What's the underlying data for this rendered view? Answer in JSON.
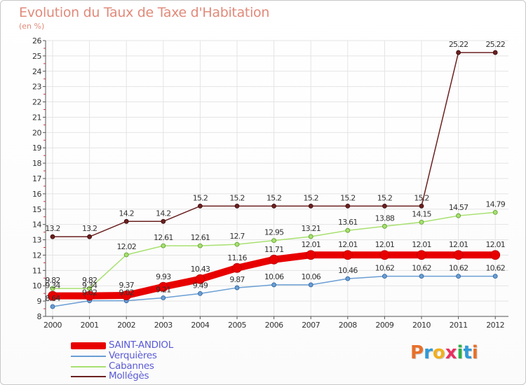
{
  "title": "Evolution du Taux de Taxe d'Habitation",
  "subtitle": "(en %)",
  "logo_text": "Proxiti",
  "colors": {
    "saint_andiol": "#e80000",
    "verquieres": "#6a9ed4",
    "cabannes": "#a8e070",
    "molleges": "#6b2020",
    "axis": "#555555",
    "grid": "#e4e4e4",
    "tick": "#dd3333",
    "legend_text": "#5a5ad6"
  },
  "chart_data": {
    "type": "line",
    "title": "Evolution du Taux de Taxe d'Habitation",
    "subtitle": "(en %)",
    "x": [
      "2000",
      "2001",
      "2002",
      "2003",
      "2004",
      "2005",
      "2006",
      "2007",
      "2008",
      "2009",
      "2010",
      "2011",
      "2012"
    ],
    "ylim": [
      8,
      26
    ],
    "yticks": [
      8,
      9,
      10,
      11,
      12,
      13,
      14,
      15,
      16,
      17,
      18,
      19,
      20,
      21,
      22,
      23,
      24,
      25,
      26
    ],
    "grid": true,
    "legend_position": "bottom-left",
    "series": [
      {
        "name": "SAINT-ANDIOL",
        "values": [
          9.34,
          9.34,
          9.37,
          9.93,
          10.43,
          11.16,
          11.71,
          12.01,
          12.01,
          12.01,
          12.01,
          12.01,
          12.01
        ],
        "labels": [
          "9.34",
          "9.34",
          "9.37",
          "9.93",
          "10.43",
          "11.16",
          "11.71",
          "12.01",
          "12.01",
          "12.01",
          "12.01",
          "12.01",
          "12.01"
        ]
      },
      {
        "name": "Verquières",
        "values": [
          8.64,
          9.02,
          9.02,
          9.21,
          9.49,
          9.87,
          10.06,
          10.06,
          10.46,
          10.62,
          10.62,
          10.62,
          10.62
        ],
        "labels": [
          "8.64",
          "9.02",
          "9.02",
          "9.21",
          "9.49",
          "9.87",
          "10.06",
          "10.06",
          "10.46",
          "10.62",
          "10.62",
          "10.62",
          "10.62"
        ]
      },
      {
        "name": "Cabannes",
        "values": [
          9.82,
          9.82,
          12.02,
          12.61,
          12.61,
          12.7,
          12.95,
          13.21,
          13.61,
          13.88,
          14.15,
          14.57,
          14.79
        ],
        "labels": [
          "9.82",
          "9.82",
          "12.02",
          "12.61",
          "12.61",
          "12.7",
          "12.95",
          "13.21",
          "13.61",
          "13.88",
          "14.15",
          "14.57",
          "14.79"
        ]
      },
      {
        "name": "Mollégès",
        "values": [
          13.2,
          13.2,
          14.2,
          14.2,
          15.2,
          15.2,
          15.2,
          15.2,
          15.2,
          15.2,
          15.2,
          25.22,
          25.22
        ],
        "labels": [
          "13.2",
          "13.2",
          "14.2",
          "14.2",
          "15.2",
          "15.2",
          "15.2",
          "15.2",
          "15.2",
          "15.2",
          "15.2",
          "25.22",
          "25.22"
        ]
      }
    ]
  }
}
